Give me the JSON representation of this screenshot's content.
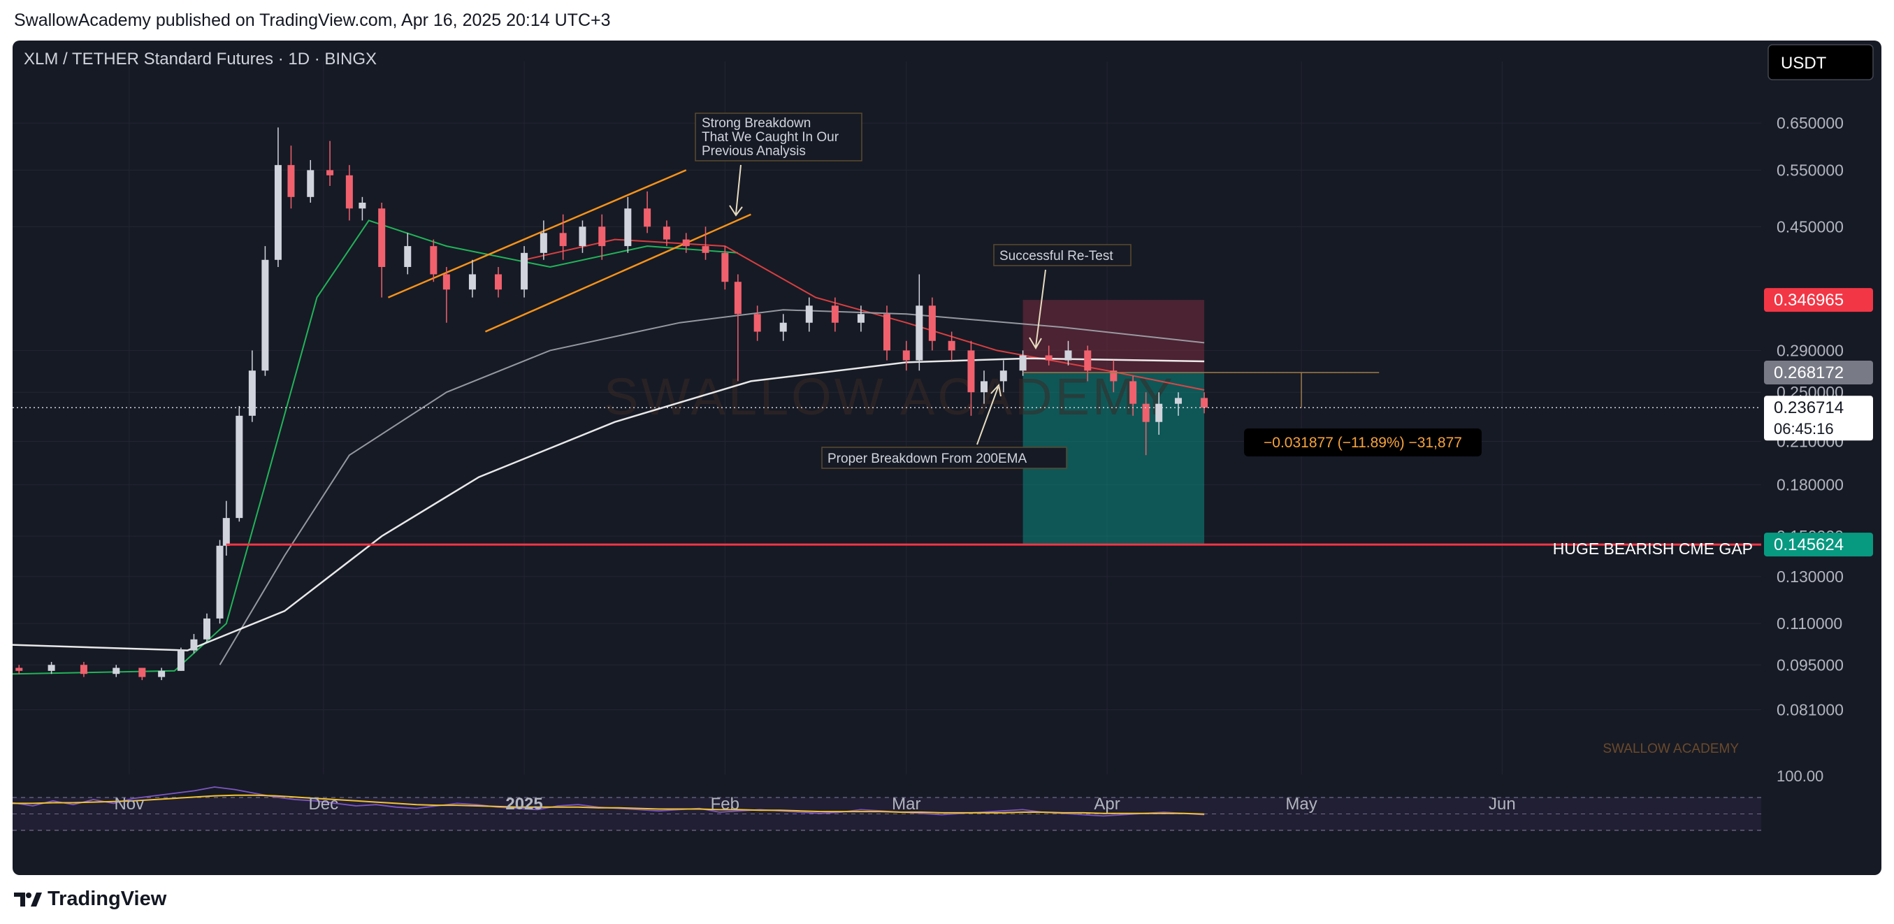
{
  "header": {
    "published_line": "SwallowAcademy published on TradingView.com, Apr 16, 2025 20:14 UTC+3"
  },
  "chart": {
    "symbol_line": "XLM / TETHER Standard Futures · 1D · BINGX",
    "currency_button": "USDT",
    "watermark": "SWALLOW ACADEMY",
    "signature": "SWALLOW ACADEMY",
    "rsi_level_label": "100.00",
    "time_labels": [
      "Nov",
      "Dec",
      "2025",
      "Feb",
      "Mar",
      "Apr",
      "May",
      "Jun"
    ],
    "price_labels": [
      "0.650000",
      "0.550000",
      "0.450000",
      "0.290000",
      "0.250000",
      "0.210000",
      "0.180000",
      "0.150000",
      "0.130000",
      "0.110000",
      "0.095000",
      "0.081000"
    ],
    "badges": {
      "stop": "0.346965",
      "entry": "0.268172",
      "last": "0.236714",
      "countdown": "06:45:16",
      "target": "0.145624"
    },
    "measure_label": "−0.031877 (−11.89%) −31,877",
    "annotations": {
      "strong_breakdown": [
        "Strong Breakdown",
        "That We Caught In Our",
        "Previous Analysis"
      ],
      "retest": "Successful Re-Test",
      "ema_breakdown": "Proper Breakdown From 200EMA",
      "cme_gap": "HUGE BEARISH CME GAP"
    },
    "colors": {
      "background": "#161a25",
      "up": "#d1d4dc",
      "down": "#f0616d",
      "ema_short": "#22c55e",
      "ema_mid": "#ef4444",
      "ema_long": "#a3a6ad",
      "ema_200": "#ffffff",
      "channel": "#f7931a",
      "cme_line": "#f23645",
      "target_zone": "#0b8b82",
      "stop_zone": "#8b2e42",
      "rsi": "#7e57c2",
      "rsi_ma": "#f1c232"
    }
  },
  "chart_data": {
    "type": "candlestick",
    "title": "XLM / TETHER Standard Futures · 1D · BINGX",
    "xlabel": "",
    "ylabel": "",
    "y_scale": "log",
    "ylim": [
      0.072,
      0.69
    ],
    "x_range": [
      "2024-10-14",
      "2025-07-11"
    ],
    "x_ticks": [
      "Nov",
      "Dec",
      "2025",
      "Feb",
      "Mar",
      "Apr",
      "May",
      "Jun"
    ],
    "grid": true,
    "candles": [
      [
        "2024-10-15",
        0.094,
        0.095,
        0.092,
        0.093
      ],
      [
        "2024-10-20",
        0.093,
        0.096,
        0.092,
        0.095
      ],
      [
        "2024-10-25",
        0.095,
        0.096,
        0.091,
        0.092
      ],
      [
        "2024-10-30",
        0.092,
        0.095,
        0.091,
        0.094
      ],
      [
        "2024-11-03",
        0.094,
        0.094,
        0.09,
        0.091
      ],
      [
        "2024-11-06",
        0.091,
        0.094,
        0.09,
        0.093
      ],
      [
        "2024-11-09",
        0.093,
        0.101,
        0.093,
        0.1
      ],
      [
        "2024-11-11",
        0.1,
        0.106,
        0.099,
        0.104
      ],
      [
        "2024-11-13",
        0.104,
        0.114,
        0.103,
        0.112
      ],
      [
        "2024-11-15",
        0.112,
        0.148,
        0.11,
        0.145
      ],
      [
        "2024-11-16",
        0.145,
        0.17,
        0.14,
        0.16
      ],
      [
        "2024-11-18",
        0.16,
        0.238,
        0.158,
        0.23
      ],
      [
        "2024-11-20",
        0.23,
        0.29,
        0.225,
        0.27
      ],
      [
        "2024-11-22",
        0.27,
        0.42,
        0.265,
        0.4
      ],
      [
        "2024-11-24",
        0.4,
        0.64,
        0.39,
        0.56
      ],
      [
        "2024-11-26",
        0.56,
        0.6,
        0.48,
        0.5
      ],
      [
        "2024-11-29",
        0.5,
        0.57,
        0.49,
        0.55
      ],
      [
        "2024-12-02",
        0.55,
        0.61,
        0.52,
        0.54
      ],
      [
        "2024-12-05",
        0.54,
        0.56,
        0.46,
        0.48
      ],
      [
        "2024-12-07",
        0.48,
        0.5,
        0.46,
        0.49
      ],
      [
        "2024-12-10",
        0.48,
        0.49,
        0.35,
        0.39
      ],
      [
        "2024-12-14",
        0.39,
        0.44,
        0.38,
        0.42
      ],
      [
        "2024-12-18",
        0.42,
        0.43,
        0.37,
        0.38
      ],
      [
        "2024-12-20",
        0.38,
        0.39,
        0.32,
        0.36
      ],
      [
        "2024-12-24",
        0.36,
        0.4,
        0.35,
        0.38
      ],
      [
        "2024-12-28",
        0.38,
        0.39,
        0.35,
        0.36
      ],
      [
        "2025-01-01",
        0.36,
        0.42,
        0.35,
        0.41
      ],
      [
        "2025-01-04",
        0.41,
        0.46,
        0.4,
        0.44
      ],
      [
        "2025-01-07",
        0.44,
        0.47,
        0.4,
        0.42
      ],
      [
        "2025-01-10",
        0.42,
        0.46,
        0.41,
        0.45
      ],
      [
        "2025-01-13",
        0.45,
        0.47,
        0.4,
        0.42
      ],
      [
        "2025-01-17",
        0.42,
        0.5,
        0.41,
        0.48
      ],
      [
        "2025-01-20",
        0.48,
        0.51,
        0.44,
        0.45
      ],
      [
        "2025-01-23",
        0.45,
        0.46,
        0.42,
        0.43
      ],
      [
        "2025-01-26",
        0.43,
        0.44,
        0.41,
        0.42
      ],
      [
        "2025-01-29",
        0.42,
        0.45,
        0.4,
        0.41
      ],
      [
        "2025-02-01",
        0.41,
        0.42,
        0.36,
        0.37
      ],
      [
        "2025-02-03",
        0.37,
        0.38,
        0.26,
        0.33
      ],
      [
        "2025-02-06",
        0.33,
        0.34,
        0.3,
        0.31
      ],
      [
        "2025-02-10",
        0.31,
        0.33,
        0.3,
        0.32
      ],
      [
        "2025-02-14",
        0.32,
        0.35,
        0.31,
        0.34
      ],
      [
        "2025-02-18",
        0.34,
        0.35,
        0.31,
        0.32
      ],
      [
        "2025-02-22",
        0.32,
        0.34,
        0.31,
        0.33
      ],
      [
        "2025-02-26",
        0.33,
        0.34,
        0.28,
        0.29
      ],
      [
        "2025-03-01",
        0.29,
        0.3,
        0.27,
        0.28
      ],
      [
        "2025-03-03",
        0.28,
        0.38,
        0.27,
        0.34
      ],
      [
        "2025-03-05",
        0.34,
        0.35,
        0.29,
        0.3
      ],
      [
        "2025-03-08",
        0.3,
        0.31,
        0.28,
        0.29
      ],
      [
        "2025-03-11",
        0.29,
        0.3,
        0.23,
        0.25
      ],
      [
        "2025-03-13",
        0.25,
        0.27,
        0.24,
        0.26
      ],
      [
        "2025-03-16",
        0.26,
        0.28,
        0.25,
        0.27
      ],
      [
        "2025-03-19",
        0.27,
        0.29,
        0.265,
        0.285
      ],
      [
        "2025-03-23",
        0.285,
        0.295,
        0.275,
        0.28
      ],
      [
        "2025-03-26",
        0.28,
        0.3,
        0.275,
        0.29
      ],
      [
        "2025-03-29",
        0.29,
        0.295,
        0.26,
        0.27
      ],
      [
        "2025-04-02",
        0.27,
        0.28,
        0.25,
        0.26
      ],
      [
        "2025-04-05",
        0.26,
        0.265,
        0.23,
        0.24
      ],
      [
        "2025-04-07",
        0.24,
        0.25,
        0.2,
        0.225
      ],
      [
        "2025-04-09",
        0.225,
        0.25,
        0.215,
        0.24
      ],
      [
        "2025-04-12",
        0.24,
        0.25,
        0.23,
        0.245
      ],
      [
        "2025-04-16",
        0.245,
        0.25,
        0.232,
        0.236714
      ]
    ],
    "series": [
      {
        "name": "",
        "role": "ema_short",
        "points": [
          [
            "2024-10-14",
            0.092
          ],
          [
            "2024-11-08",
            0.093
          ],
          [
            "2024-11-16",
            0.11
          ],
          [
            "2024-11-22",
            0.18
          ],
          [
            "2024-11-30",
            0.35
          ],
          [
            "2024-12-08",
            0.46
          ],
          [
            "2024-12-20",
            0.42
          ],
          [
            "2025-01-05",
            0.39
          ],
          [
            "2025-01-20",
            0.42
          ],
          [
            "2025-02-03",
            0.41
          ]
        ]
      },
      {
        "name": "",
        "role": "ema_mid",
        "points": [
          [
            "2025-01-01",
            0.4
          ],
          [
            "2025-01-15",
            0.43
          ],
          [
            "2025-02-01",
            0.42
          ],
          [
            "2025-02-15",
            0.35
          ],
          [
            "2025-03-01",
            0.32
          ],
          [
            "2025-03-15",
            0.29
          ],
          [
            "2025-04-01",
            0.27
          ],
          [
            "2025-04-16",
            0.252
          ]
        ]
      },
      {
        "name": "",
        "role": "ema_long",
        "points": [
          [
            "2024-11-15",
            0.095
          ],
          [
            "2024-11-25",
            0.14
          ],
          [
            "2024-12-05",
            0.2
          ],
          [
            "2024-12-20",
            0.25
          ],
          [
            "2025-01-05",
            0.29
          ],
          [
            "2025-01-25",
            0.32
          ],
          [
            "2025-02-10",
            0.335
          ],
          [
            "2025-03-01",
            0.33
          ],
          [
            "2025-03-25",
            0.315
          ],
          [
            "2025-04-16",
            0.298
          ]
        ]
      },
      {
        "name": "",
        "role": "ema_200",
        "points": [
          [
            "2024-10-14",
            0.102
          ],
          [
            "2024-11-10",
            0.1
          ],
          [
            "2024-11-25",
            0.115
          ],
          [
            "2024-12-10",
            0.15
          ],
          [
            "2024-12-25",
            0.185
          ],
          [
            "2025-01-15",
            0.225
          ],
          [
            "2025-02-05",
            0.26
          ],
          [
            "2025-03-01",
            0.278
          ],
          [
            "2025-03-20",
            0.282
          ],
          [
            "2025-04-16",
            0.279
          ]
        ]
      }
    ],
    "lines": [
      {
        "role": "channel_upper",
        "from": [
          "2024-12-11",
          0.35
        ],
        "to": [
          "2025-01-26",
          0.55
        ]
      },
      {
        "role": "channel_lower",
        "from": [
          "2024-12-26",
          0.31
        ],
        "to": [
          "2025-02-05",
          0.47
        ]
      },
      {
        "role": "cme_gap",
        "value": 0.145624,
        "from": "2024-11-16",
        "to": "2025-07-11"
      },
      {
        "role": "last_price",
        "value": 0.236714
      },
      {
        "role": "entry_line",
        "value": 0.268172,
        "from": "2025-03-19",
        "to": "2025-05-13"
      }
    ],
    "position": {
      "start": "2025-03-19",
      "end": "2025-04-16",
      "stop": 0.346965,
      "entry": 0.268172,
      "target": 0.145624
    },
    "rsi": {
      "level_label": "100.00",
      "values": [
        55,
        50,
        58,
        52,
        60,
        54,
        62,
        66,
        70,
        74,
        80,
        76,
        70,
        64,
        60,
        58,
        54,
        50,
        52,
        48,
        46,
        50,
        54,
        52,
        48,
        46,
        44,
        50,
        52,
        48,
        46,
        44,
        42,
        44,
        46,
        40,
        42,
        44,
        42,
        40,
        38,
        40,
        44,
        42,
        40,
        38,
        36,
        38,
        40,
        42,
        44,
        40,
        38,
        36,
        34,
        36,
        38,
        40,
        38,
        36
      ],
      "ma_values": [
        54,
        54,
        55,
        55,
        56,
        57,
        58,
        60,
        62,
        64,
        66,
        67,
        67,
        66,
        64,
        62,
        60,
        58,
        56,
        54,
        52,
        51,
        51,
        50,
        49,
        48,
        48,
        48,
        48,
        47,
        47,
        46,
        45,
        45,
        45,
        44,
        44,
        43,
        43,
        42,
        41,
        41,
        41,
        41,
        40,
        40,
        39,
        39,
        39,
        39,
        40,
        40,
        39,
        39,
        38,
        38,
        38,
        38,
        38,
        37
      ]
    }
  }
}
